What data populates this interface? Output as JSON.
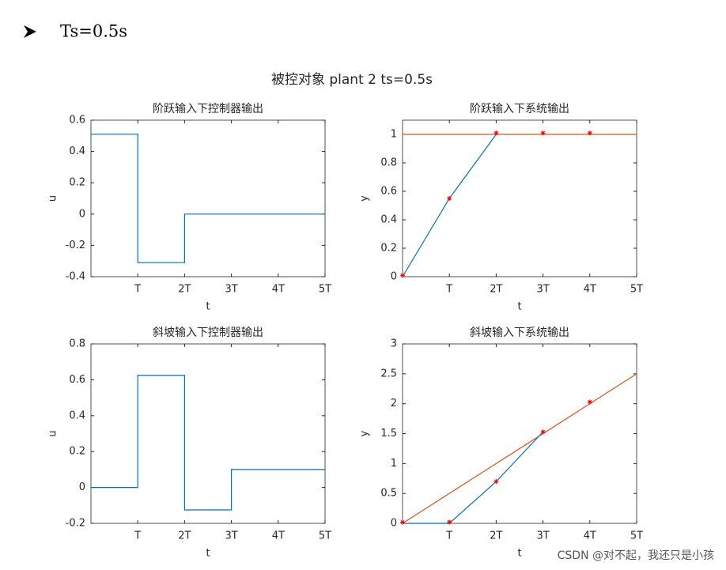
{
  "heading": {
    "text": "Ts=0.5s"
  },
  "suptitle": "被控对象 plant 2  ts=0.5s",
  "watermark": "CSDN @对不起，我还只是小孩",
  "chart_data": [
    {
      "type": "line",
      "title": "阶跃输入下控制器输出",
      "xlabel": "t",
      "ylabel": "u",
      "xlim": [
        0,
        5
      ],
      "ylim": [
        -0.4,
        0.6
      ],
      "xticks": [
        {
          "value": 1,
          "label": "T"
        },
        {
          "value": 2,
          "label": "2T"
        },
        {
          "value": 3,
          "label": "3T"
        },
        {
          "value": 4,
          "label": "4T"
        },
        {
          "value": 5,
          "label": "5T"
        }
      ],
      "yticks": [
        -0.4,
        -0.2,
        0,
        0.2,
        0.4,
        0.6
      ],
      "series": [
        {
          "color": "#0072bd",
          "x": [
            0,
            1,
            1,
            2,
            2,
            5
          ],
          "values": [
            0.51,
            0.51,
            -0.31,
            -0.31,
            0,
            0
          ]
        }
      ]
    },
    {
      "type": "line",
      "title": "阶跃输入下系统输出",
      "xlabel": "t",
      "ylabel": "y",
      "xlim": [
        0,
        5
      ],
      "ylim": [
        0,
        1.1
      ],
      "xticks": [
        {
          "value": 1,
          "label": "T"
        },
        {
          "value": 2,
          "label": "2T"
        },
        {
          "value": 3,
          "label": "3T"
        },
        {
          "value": 4,
          "label": "4T"
        },
        {
          "value": 5,
          "label": "5T"
        }
      ],
      "yticks": [
        0,
        0.2,
        0.4,
        0.6,
        0.8,
        1
      ],
      "series": [
        {
          "color": "#d95319",
          "x": [
            0,
            5
          ],
          "values": [
            1,
            1
          ]
        },
        {
          "color": "#0072bd",
          "x": [
            0,
            1,
            2
          ],
          "values": [
            0,
            0.55,
            1
          ]
        },
        {
          "color": "#ff0000",
          "marker": "star",
          "x": [
            0,
            1,
            2,
            3,
            4
          ],
          "values": [
            0.01,
            0.55,
            1.01,
            1.01,
            1.01
          ]
        }
      ]
    },
    {
      "type": "line",
      "title": "斜坡输入下控制器输出",
      "xlabel": "t",
      "ylabel": "u",
      "xlim": [
        0,
        5
      ],
      "ylim": [
        -0.2,
        0.8
      ],
      "xticks": [
        {
          "value": 1,
          "label": "T"
        },
        {
          "value": 2,
          "label": "2T"
        },
        {
          "value": 3,
          "label": "3T"
        },
        {
          "value": 4,
          "label": "4T"
        },
        {
          "value": 5,
          "label": "5T"
        }
      ],
      "yticks": [
        -0.2,
        0,
        0.2,
        0.4,
        0.6,
        0.8
      ],
      "series": [
        {
          "color": "#0072bd",
          "x": [
            0,
            1,
            1,
            2,
            2,
            3,
            3,
            5
          ],
          "values": [
            0,
            0,
            0.625,
            0.625,
            -0.125,
            -0.125,
            0.1,
            0.1
          ]
        }
      ]
    },
    {
      "type": "line",
      "title": "斜坡输入下系统输出",
      "xlabel": "t",
      "ylabel": "y",
      "xlim": [
        0,
        5
      ],
      "ylim": [
        0,
        3
      ],
      "xticks": [
        {
          "value": 1,
          "label": "T"
        },
        {
          "value": 2,
          "label": "2T"
        },
        {
          "value": 3,
          "label": "3T"
        },
        {
          "value": 4,
          "label": "4T"
        },
        {
          "value": 5,
          "label": "5T"
        }
      ],
      "yticks": [
        0,
        0.5,
        1,
        1.5,
        2,
        2.5,
        3
      ],
      "series": [
        {
          "color": "#d95319",
          "x": [
            0,
            5
          ],
          "values": [
            0,
            2.5
          ]
        },
        {
          "color": "#0072bd",
          "x": [
            0,
            1,
            2,
            3
          ],
          "values": [
            0,
            0,
            0.7,
            1.53
          ]
        },
        {
          "color": "#ff0000",
          "marker": "star",
          "x": [
            0,
            1,
            2,
            3,
            4
          ],
          "values": [
            0.02,
            0.02,
            0.7,
            1.53,
            2.03
          ]
        }
      ]
    }
  ]
}
